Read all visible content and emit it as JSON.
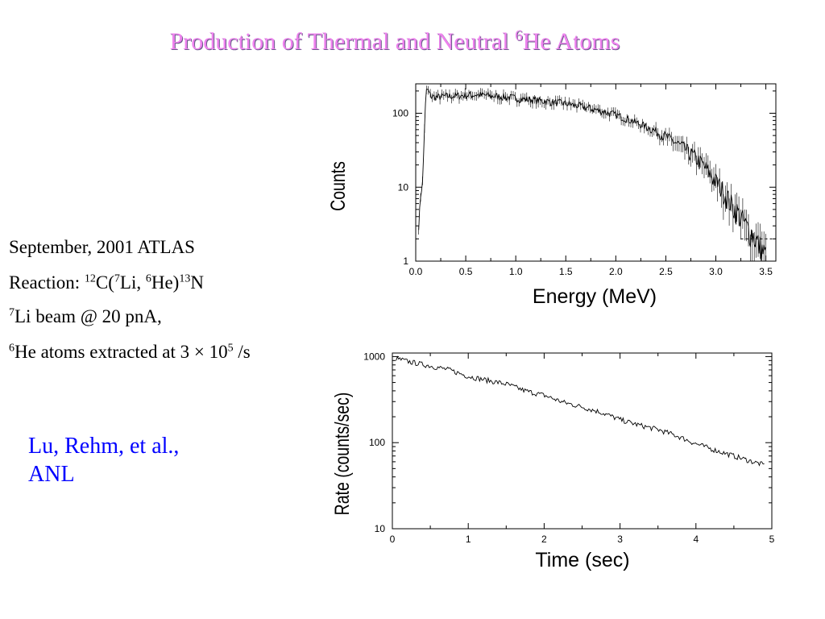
{
  "title": {
    "prefix": "Production of Thermal and Neutral ",
    "superscript": "6",
    "suffix": "He Atoms",
    "color": "#ee82ee"
  },
  "info": {
    "line1": "September, 2001  ATLAS",
    "line2": {
      "a": "Reaction: ",
      "b": "12",
      "c": "C(",
      "d": "7",
      "e": "Li, ",
      "f": "6",
      "g": "He)",
      "h": "13",
      "i": "N"
    },
    "line3": {
      "a": "7",
      "b": "Li beam @ 20 pnA,"
    },
    "line4": {
      "a": "6",
      "b": "He atoms extracted at 3 × 10",
      "c": "5",
      "d": " /s"
    }
  },
  "credit": {
    "line1": "Lu, Rehm, et al.,",
    "line2": "ANL",
    "color": "#0000ff"
  },
  "chart_data": [
    {
      "type": "line",
      "xlabel": "Energy (MeV)",
      "ylabel": "Counts",
      "xlim": [
        0.0,
        3.6
      ],
      "ylim": [
        1,
        250
      ],
      "yscale": "log",
      "xticks": [
        0.0,
        0.5,
        1.0,
        1.5,
        2.0,
        2.5,
        3.0,
        3.5
      ],
      "xtick_labels": [
        "0.0",
        "0.5",
        "1.0",
        "1.5",
        "2.0",
        "2.5",
        "3.0",
        "3.5"
      ],
      "yticks": [
        1,
        10,
        100
      ],
      "ytick_labels": [
        "1",
        "10",
        "100"
      ],
      "reference_line": {
        "y": 2,
        "from_x": 3.25,
        "style": "dashed"
      },
      "series": [
        {
          "x": [
            0.03,
            0.05,
            0.07,
            0.09,
            0.1,
            0.11,
            0.12,
            0.15,
            0.2,
            0.3,
            0.4,
            0.5,
            0.6,
            0.7,
            0.8,
            0.9,
            1.0,
            1.1,
            1.2,
            1.3,
            1.4,
            1.5,
            1.6,
            1.7,
            1.8,
            1.9,
            2.0,
            2.1,
            2.2,
            2.3,
            2.4,
            2.5,
            2.6,
            2.7,
            2.8,
            2.9,
            3.0,
            3.05,
            3.1,
            3.15,
            3.2,
            3.25,
            3.3,
            3.35,
            3.4,
            3.45,
            3.5
          ],
          "y": [
            3,
            8,
            12,
            80,
            150,
            220,
            205,
            170,
            165,
            170,
            172,
            175,
            178,
            175,
            170,
            165,
            160,
            155,
            150,
            145,
            140,
            135,
            128,
            120,
            112,
            103,
            95,
            85,
            75,
            66,
            57,
            48,
            40,
            32,
            25,
            18,
            12,
            10,
            8,
            6,
            5,
            4,
            3,
            2.5,
            2,
            1.5,
            1.2
          ]
        }
      ]
    },
    {
      "type": "line",
      "xlabel": "Time (sec)",
      "ylabel": "Rate (counts/sec)",
      "xlim": [
        0,
        5
      ],
      "ylim": [
        10,
        1100
      ],
      "yscale": "log",
      "xticks": [
        0,
        1,
        2,
        3,
        4,
        5
      ],
      "xtick_labels": [
        "0",
        "1",
        "2",
        "3",
        "4",
        "5"
      ],
      "yticks": [
        10,
        100,
        1000
      ],
      "ytick_labels": [
        "10",
        "100",
        "1000"
      ],
      "series": [
        {
          "x": [
            0.05,
            0.25,
            0.5,
            0.75,
            1.0,
            1.25,
            1.5,
            1.75,
            2.0,
            2.25,
            2.5,
            2.75,
            3.0,
            3.25,
            3.5,
            3.75,
            4.0,
            4.25,
            4.5,
            4.75,
            4.9
          ],
          "y": [
            950,
            860,
            780,
            700,
            590,
            530,
            480,
            400,
            355,
            295,
            260,
            225,
            185,
            160,
            142,
            120,
            97,
            82,
            70,
            60,
            55
          ]
        }
      ]
    }
  ]
}
